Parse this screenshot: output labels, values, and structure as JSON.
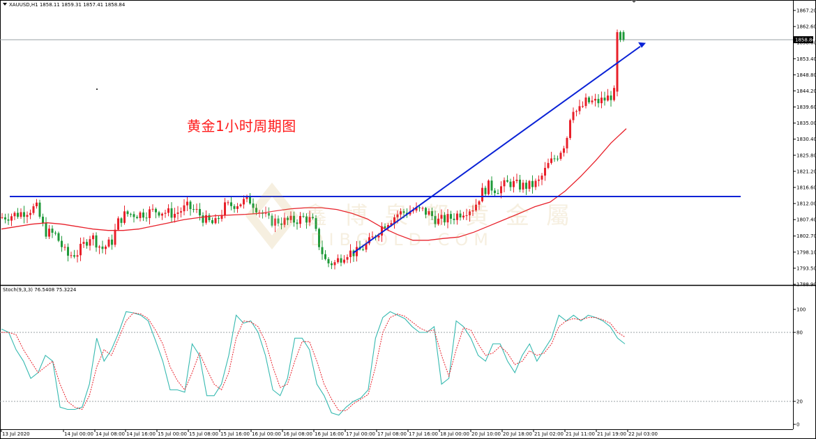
{
  "header": {
    "symbol": "XAUUSD,H1",
    "ohlc": "1858.11 1859.31 1857.41 1858.84"
  },
  "annotation": "黄金1小时周期图",
  "watermark": {
    "chinese": "鑫博泉都黄金屬",
    "url": "DIBGOLD.COM"
  },
  "colors": {
    "bull": "#e8202a",
    "bear": "#1f9a3a",
    "ma": "#e8202a",
    "trendline": "#0a22d6",
    "stoch_main": "#35b9b0",
    "stoch_signal": "#e8202a",
    "grid": "#9aa0a6"
  },
  "chart_data": [
    {
      "type": "candlestick",
      "name": "XAUUSD,H1",
      "y_axis_labels": [
        "1867.20",
        "1862.60",
        "1858.00",
        "1853.40",
        "1848.80",
        "1844.20",
        "1839.60",
        "1835.00",
        "1830.40",
        "1825.80",
        "1821.20",
        "1816.60",
        "1812.00",
        "1807.40",
        "1802.70",
        "1798.10",
        "1793.50",
        "1788.90"
      ],
      "ylim": [
        1788.9,
        1869.0
      ],
      "current_price": "1858.84",
      "current_price_value": 1858.84,
      "horizontal_line": 1814.0,
      "moving_average": [
        1804.7,
        1805.4,
        1806.1,
        1806.5,
        1806.1,
        1805.4,
        1804.7,
        1804.3,
        1804.3,
        1804.7,
        1805.6,
        1806.5,
        1807.4,
        1808.0,
        1808.5,
        1808.7,
        1808.9,
        1809.2,
        1809.9,
        1810.5,
        1810.8,
        1810.8,
        1810.3,
        1809.2,
        1807.6,
        1805.1,
        1803.1,
        1801.5,
        1801.5,
        1802.0,
        1802.4,
        1803.8,
        1805.6,
        1807.4,
        1809.2,
        1811.1,
        1812.4,
        1815.6,
        1819.7,
        1824.3,
        1829.3,
        1833.4
      ]
    },
    {
      "type": "line",
      "name": "Stoch(9,3,3) 76.5408 75.3224",
      "y_axis_labels": [
        "100",
        "80",
        "20",
        "0"
      ],
      "ylim": [
        0,
        100
      ],
      "levels": [
        80,
        20
      ],
      "series": [
        {
          "name": "main",
          "values": [
            83,
            80,
            65,
            55,
            40,
            45,
            60,
            55,
            15,
            13,
            13,
            15,
            35,
            75,
            55,
            65,
            80,
            98,
            97,
            95,
            90,
            73,
            55,
            30,
            30,
            28,
            70,
            60,
            25,
            25,
            35,
            60,
            95,
            88,
            90,
            80,
            60,
            30,
            25,
            40,
            75,
            75,
            65,
            35,
            25,
            10,
            8,
            15,
            20,
            23,
            30,
            75,
            93,
            98,
            95,
            92,
            85,
            80,
            80,
            85,
            35,
            40,
            90,
            85,
            75,
            60,
            55,
            70,
            70,
            55,
            45,
            60,
            70,
            55,
            65,
            75,
            95,
            90,
            95,
            90,
            95,
            93,
            90,
            85,
            75,
            70
          ]
        },
        {
          "name": "signal",
          "values": [
            80,
            80,
            78,
            65,
            55,
            45,
            50,
            55,
            35,
            20,
            15,
            13,
            25,
            50,
            65,
            60,
            75,
            90,
            97,
            96,
            92,
            82,
            70,
            50,
            38,
            30,
            45,
            62,
            48,
            35,
            30,
            45,
            75,
            90,
            89,
            85,
            72,
            50,
            32,
            35,
            55,
            72,
            72,
            55,
            35,
            22,
            12,
            12,
            18,
            22,
            26,
            50,
            80,
            93,
            96,
            94,
            89,
            84,
            81,
            82,
            60,
            42,
            65,
            84,
            82,
            70,
            60,
            62,
            68,
            62,
            52,
            55,
            64,
            60,
            62,
            70,
            85,
            90,
            92,
            91,
            93,
            93,
            91,
            88,
            80,
            76
          ]
        }
      ]
    }
  ],
  "x_axis_labels": [
    "13 Jul 2020",
    "14 Jul 00:00",
    "14 Jul 08:00",
    "14 Jul 16:00",
    "15 Jul 00:00",
    "15 Jul 08:00",
    "15 Jul 16:00",
    "16 Jul 00:00",
    "16 Jul 08:00",
    "16 Jul 16:00",
    "17 Jul 00:00",
    "17 Jul 08:00",
    "17 Jul 16:00",
    "18 Jul 00:00",
    "20 Jul 10:00",
    "20 Jul 18:00",
    "21 Jul 02:00",
    "21 Jul 11:00",
    "21 Jul 19:00",
    "22 Jul 03:00"
  ]
}
